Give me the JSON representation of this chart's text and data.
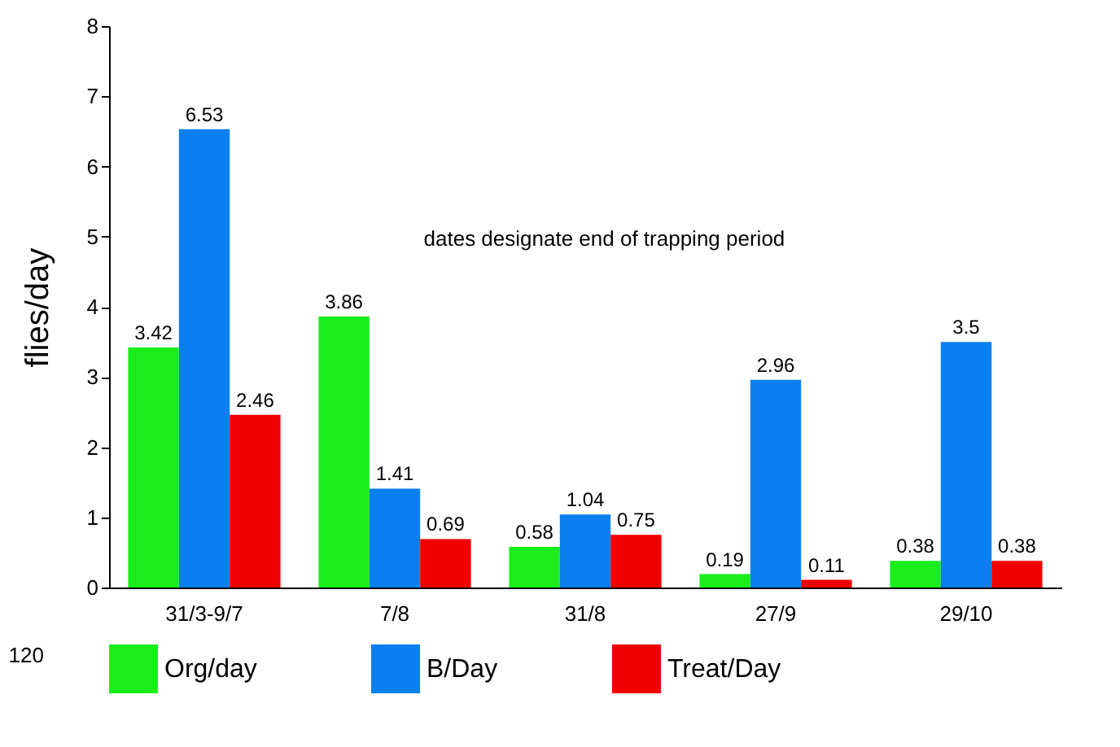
{
  "chart_data": {
    "type": "bar",
    "ylabel": "flies/day",
    "categories": [
      "31/3-9/7",
      "7/8",
      "31/8",
      "27/9",
      "29/10"
    ],
    "series": [
      {
        "name": "Org/day",
        "color": "#1aee1a",
        "values": [
          3.42,
          3.86,
          0.58,
          0.19,
          0.38
        ]
      },
      {
        "name": "B/Day",
        "color": "#0a80f0",
        "values": [
          6.53,
          1.41,
          1.04,
          2.96,
          3.5
        ]
      },
      {
        "name": "Treat/Day",
        "color": "#f00000",
        "values": [
          2.46,
          0.69,
          0.75,
          0.11,
          0.38
        ]
      }
    ],
    "ylim": [
      0,
      8
    ],
    "yticks": [
      0,
      1,
      2,
      3,
      4,
      5,
      6,
      7,
      8
    ],
    "grid": false,
    "legend": "bottom",
    "data_labels": true,
    "annotations": [
      "dates designate end of trapping period",
      "120"
    ]
  }
}
